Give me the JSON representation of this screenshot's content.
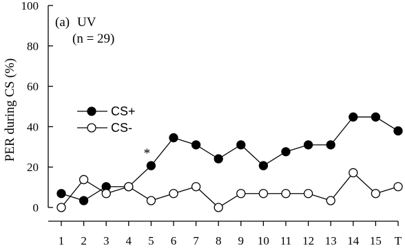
{
  "chart_data": {
    "type": "line",
    "panel_label": "(a)",
    "condition": "UV",
    "n_label": "(n = 29)",
    "ylabel": "PER during CS (%)",
    "ylim": [
      0,
      100
    ],
    "yticks": [
      0,
      20,
      40,
      60,
      80,
      100
    ],
    "categories": [
      "1",
      "2",
      "3",
      "4",
      "5",
      "6",
      "7",
      "8",
      "9",
      "10",
      "11",
      "12",
      "13",
      "14",
      "15",
      "T"
    ],
    "series": [
      {
        "name": "CS+",
        "marker": "filled",
        "values": [
          6.9,
          3.4,
          10.3,
          10.3,
          20.7,
          34.5,
          31.0,
          24.1,
          31.0,
          20.7,
          27.6,
          31.0,
          31.0,
          44.8,
          44.8,
          37.9
        ]
      },
      {
        "name": "CS-",
        "marker": "open",
        "values": [
          0,
          13.8,
          6.9,
          10.3,
          3.4,
          6.9,
          10.3,
          0,
          6.9,
          6.9,
          6.9,
          6.9,
          3.4,
          17.2,
          6.9,
          10.3
        ]
      }
    ],
    "annotations": [
      {
        "text": "*",
        "category": "5"
      }
    ],
    "grid": false,
    "legend": "left"
  }
}
